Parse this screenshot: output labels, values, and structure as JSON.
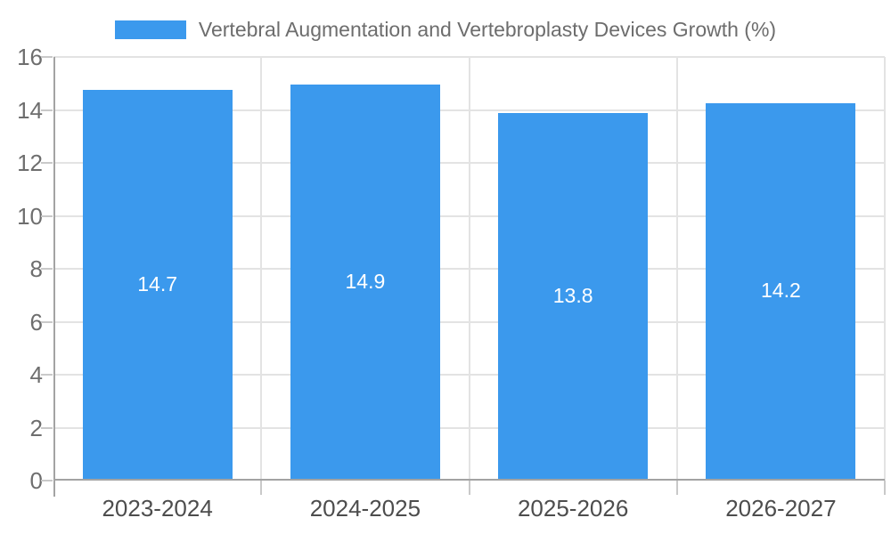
{
  "chart_data": {
    "type": "bar",
    "title": "Vertebral Augmentation and Vertebroplasty Devices Growth (%)",
    "categories": [
      "2023-2024",
      "2024-2025",
      "2025-2026",
      "2026-2027"
    ],
    "values": [
      14.7,
      14.9,
      13.8,
      14.2
    ],
    "value_labels": [
      "14.7",
      "14.9",
      "13.8",
      "14.2"
    ],
    "xlabel": "",
    "ylabel": "",
    "ylim": [
      0,
      16
    ],
    "ytick_step": 2,
    "ytick_labels": [
      "0",
      "2",
      "4",
      "6",
      "8",
      "10",
      "12",
      "14",
      "16"
    ],
    "grid": true,
    "legend_position": "top",
    "colors": {
      "bar": "#3b99ed",
      "bar_label": "#ffffff",
      "title_text": "#6d6d6d",
      "axis_line": "#a3a3a3",
      "gridline": "#e3e3e3",
      "tick": "#c9c9c9",
      "x_label": "#4d4d4d",
      "y_label": "#6e6e6e",
      "background": "#ffffff"
    }
  }
}
